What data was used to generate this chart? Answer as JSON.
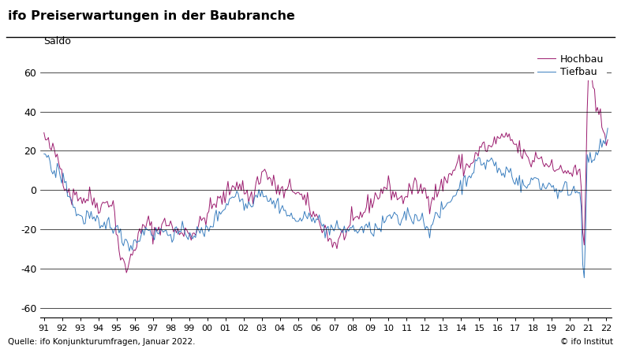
{
  "title": "ifo Preiserwartungen in der Baubranche",
  "ylabel": "Saldo",
  "xlabel_note": "Quelle: ifo Konjunkturumfragen, Januar 2022.",
  "copyright_note": "© ifo Institut",
  "hochbau_color": "#9B1B6E",
  "tiefbau_color": "#3A7EBF",
  "ylim": [
    -65,
    72
  ],
  "yticks": [
    -60,
    -40,
    -20,
    0,
    20,
    40,
    60
  ],
  "year_start": 1991,
  "year_end": 2022,
  "legend_hochbau": "Hochbau",
  "legend_tiefbau": "Tiefbau",
  "hochbau": [
    28,
    26,
    24,
    23,
    22,
    21,
    20,
    19,
    18,
    17,
    15,
    12,
    10,
    7,
    4,
    2,
    1,
    0,
    -2,
    -4,
    -3,
    -2,
    -1,
    -2,
    -3,
    -4,
    -4,
    -5,
    -5,
    -4,
    -4,
    -3,
    -4,
    -5,
    -6,
    -6,
    -7,
    -7,
    -8,
    -8,
    -8,
    -7,
    -6,
    -5,
    -5,
    -6,
    -7,
    -8,
    -12,
    -18,
    -24,
    -30,
    -34,
    -36,
    -38,
    -40,
    -40,
    -39,
    -37,
    -35,
    -32,
    -30,
    -28,
    -26,
    -24,
    -23,
    -22,
    -20,
    -19,
    -18,
    -17,
    -17,
    -18,
    -20,
    -21,
    -21,
    -21,
    -20,
    -19,
    -18,
    -17,
    -17,
    -18,
    -17,
    -16,
    -17,
    -18,
    -19,
    -20,
    -21,
    -22,
    -22,
    -21,
    -21,
    -21,
    -20,
    -20,
    -21,
    -22,
    -22,
    -22,
    -21,
    -21,
    -21,
    -20,
    -19,
    -18,
    -16,
    -15,
    -14,
    -13,
    -12,
    -11,
    -10,
    -9,
    -8,
    -7,
    -6,
    -6,
    -6,
    -5,
    -5,
    -4,
    -3,
    -2,
    -1,
    0,
    1,
    2,
    3,
    4,
    4,
    3,
    2,
    2,
    1,
    0,
    -1,
    -2,
    -3,
    -4,
    -4,
    -3,
    -2,
    3,
    5,
    6,
    7,
    8,
    9,
    10,
    8,
    7,
    6,
    5,
    4,
    3,
    2,
    1,
    1,
    0,
    -1,
    -1,
    -2,
    -2,
    -1,
    0,
    1,
    1,
    1,
    1,
    0,
    -1,
    -2,
    -3,
    -4,
    -5,
    -6,
    -7,
    -8,
    -9,
    -10,
    -11,
    -12,
    -13,
    -14,
    -15,
    -16,
    -17,
    -18,
    -19,
    -20,
    -21,
    -23,
    -25,
    -26,
    -27,
    -27,
    -27,
    -27,
    -26,
    -25,
    -24,
    -23,
    -22,
    -21,
    -21,
    -20,
    -19,
    -18,
    -17,
    -17,
    -16,
    -15,
    -14,
    -13,
    -12,
    -11,
    -10,
    -9,
    -8,
    -7,
    -6,
    -5,
    -5,
    -4,
    -3,
    -2,
    -2,
    -1,
    0,
    1,
    1,
    2,
    2,
    1,
    0,
    -1,
    -2,
    -3,
    -3,
    -4,
    -5,
    -5,
    -4,
    -3,
    -2,
    -2,
    -1,
    0,
    1,
    1,
    1,
    2,
    2,
    1,
    0,
    0,
    0,
    -1,
    -2,
    -3,
    -4,
    -4,
    -3,
    -2,
    -1,
    0,
    0,
    1,
    2,
    3,
    4,
    5,
    6,
    7,
    8,
    9,
    10,
    11,
    12,
    13,
    14,
    14,
    13,
    12,
    11,
    12,
    12,
    13,
    14,
    15,
    16,
    17,
    18,
    19,
    20,
    21,
    22,
    23,
    22,
    21,
    21,
    21,
    22,
    23,
    24,
    25,
    26,
    27,
    27,
    26,
    25,
    25,
    26,
    27,
    27,
    26,
    25,
    24,
    23,
    22,
    21,
    20,
    20,
    19,
    18,
    17,
    16,
    15,
    14,
    14,
    15,
    16,
    17,
    17,
    18,
    17,
    16,
    15,
    14,
    13,
    12,
    13,
    14,
    15,
    14,
    13,
    12,
    11,
    10,
    9,
    8,
    9,
    10,
    11,
    10,
    9,
    8,
    9,
    10,
    9,
    8,
    9,
    9,
    2,
    -22,
    -28,
    2,
    42,
    62,
    58,
    55,
    50,
    46,
    42,
    40,
    38,
    36,
    34,
    32,
    30,
    28,
    27
  ],
  "tiefbau": [
    20,
    18,
    16,
    14,
    13,
    11,
    10,
    9,
    9,
    10,
    9,
    8,
    7,
    6,
    4,
    2,
    0,
    -2,
    -4,
    -6,
    -8,
    -10,
    -11,
    -12,
    -13,
    -14,
    -15,
    -15,
    -14,
    -13,
    -12,
    -13,
    -14,
    -15,
    -16,
    -16,
    -17,
    -18,
    -19,
    -20,
    -20,
    -19,
    -18,
    -17,
    -16,
    -16,
    -17,
    -18,
    -19,
    -20,
    -21,
    -22,
    -23,
    -24,
    -25,
    -25,
    -26,
    -27,
    -27,
    -28,
    -28,
    -27,
    -26,
    -25,
    -25,
    -24,
    -23,
    -22,
    -21,
    -20,
    -19,
    -19,
    -20,
    -21,
    -22,
    -23,
    -23,
    -22,
    -21,
    -20,
    -20,
    -21,
    -22,
    -22,
    -22,
    -22,
    -22,
    -22,
    -22,
    -22,
    -22,
    -22,
    -22,
    -22,
    -22,
    -22,
    -22,
    -22,
    -22,
    -22,
    -22,
    -22,
    -22,
    -22,
    -22,
    -22,
    -22,
    -22,
    -22,
    -22,
    -21,
    -20,
    -19,
    -18,
    -17,
    -16,
    -15,
    -14,
    -13,
    -12,
    -11,
    -10,
    -9,
    -8,
    -7,
    -6,
    -5,
    -4,
    -3,
    -2,
    -2,
    -2,
    -3,
    -4,
    -5,
    -6,
    -7,
    -8,
    -8,
    -7,
    -6,
    -5,
    -5,
    -4,
    -3,
    -2,
    -1,
    0,
    0,
    -1,
    -2,
    -3,
    -4,
    -5,
    -6,
    -6,
    -7,
    -7,
    -7,
    -7,
    -7,
    -8,
    -9,
    -10,
    -11,
    -12,
    -13,
    -13,
    -14,
    -15,
    -15,
    -15,
    -15,
    -15,
    -15,
    -15,
    -15,
    -15,
    -15,
    -14,
    -14,
    -13,
    -12,
    -12,
    -13,
    -14,
    -15,
    -16,
    -17,
    -18,
    -19,
    -20,
    -20,
    -20,
    -20,
    -20,
    -20,
    -20,
    -20,
    -20,
    -20,
    -20,
    -20,
    -20,
    -20,
    -20,
    -20,
    -20,
    -20,
    -20,
    -20,
    -20,
    -20,
    -20,
    -20,
    -20,
    -20,
    -20,
    -20,
    -20,
    -20,
    -20,
    -20,
    -20,
    -20,
    -20,
    -20,
    -20,
    -20,
    -19,
    -18,
    -17,
    -16,
    -15,
    -14,
    -13,
    -13,
    -14,
    -15,
    -15,
    -16,
    -16,
    -16,
    -15,
    -14,
    -13,
    -12,
    -12,
    -12,
    -13,
    -14,
    -14,
    -14,
    -13,
    -13,
    -13,
    -14,
    -15,
    -16,
    -17,
    -18,
    -19,
    -19,
    -18,
    -17,
    -16,
    -15,
    -14,
    -13,
    -12,
    -11,
    -10,
    -9,
    -8,
    -7,
    -6,
    -5,
    -4,
    -3,
    -2,
    -1,
    0,
    1,
    2,
    3,
    4,
    5,
    6,
    7,
    8,
    9,
    10,
    11,
    12,
    13,
    14,
    15,
    15,
    14,
    13,
    13,
    14,
    15,
    16,
    15,
    14,
    13,
    12,
    11,
    10,
    9,
    8,
    8,
    9,
    10,
    11,
    10,
    9,
    8,
    7,
    6,
    5,
    5,
    4,
    3,
    2,
    2,
    2,
    2,
    2,
    3,
    4,
    5,
    6,
    7,
    6,
    5,
    4,
    3,
    2,
    1,
    1,
    2,
    3,
    4,
    3,
    2,
    1,
    0,
    -1,
    -2,
    -2,
    -1,
    0,
    1,
    2,
    1,
    0,
    -1,
    0,
    1,
    0,
    -1,
    0,
    0,
    -6,
    -36,
    -42,
    -18,
    16,
    16,
    14,
    13,
    15,
    17,
    18,
    19,
    20,
    21,
    22,
    23,
    25,
    27,
    28
  ]
}
